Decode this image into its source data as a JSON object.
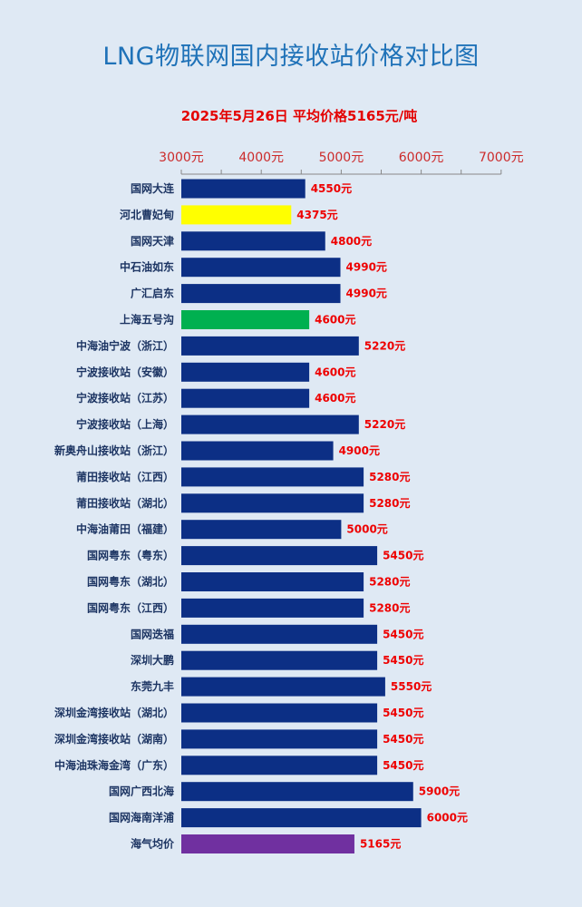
{
  "header": {
    "title": "LNG物联网国内接收站价格对比图",
    "subtitle": "2025年5月26日 平均价格5165元/吨"
  },
  "chart_data": {
    "type": "bar",
    "orientation": "horizontal",
    "title": "LNG物联网国内接收站价格对比图",
    "subtitle": "2025年5月26日 平均价格5165元/吨",
    "xlim": [
      3000,
      7000
    ],
    "ticks": [
      3000,
      4000,
      5000,
      6000,
      7000
    ],
    "tick_labels": [
      "3000元",
      "4000元",
      "5000元",
      "6000元",
      "7000元"
    ],
    "value_suffix": "元",
    "colors": {
      "default": "#0c2f85",
      "highlight_yellow": "#ffff00",
      "highlight_green": "#00b050",
      "average": "#7030a0",
      "value_label": "#ee0000",
      "axis": "#888888"
    },
    "categories": [
      "国网大连",
      "河北曹妃甸",
      "国网天津",
      "中石油如东",
      "广汇启东",
      "上海五号沟",
      "中海油宁波（浙江）",
      "宁波接收站（安徽）",
      "宁波接收站（江苏）",
      "宁波接收站（上海）",
      "新奥舟山接收站（浙江）",
      "莆田接收站（江西）",
      "莆田接收站（湖北）",
      "中海油莆田（福建）",
      "国网粤东（粤东）",
      "国网粤东（湖北）",
      "国网粤东（江西）",
      "国网迭福",
      "深圳大鹏",
      "东莞九丰",
      "深圳金湾接收站（湖北）",
      "深圳金湾接收站（湖南）",
      "中海油珠海金湾（广东）",
      "国网广西北海",
      "国网海南洋浦",
      "海气均价"
    ],
    "values": [
      4550,
      4375,
      4800,
      4990,
      4990,
      4600,
      5220,
      4600,
      4600,
      5220,
      4900,
      5280,
      5280,
      5000,
      5450,
      5280,
      5280,
      5450,
      5450,
      5550,
      5450,
      5450,
      5450,
      5900,
      6000,
      5165
    ],
    "bar_colors": [
      "#0c2f85",
      "#ffff00",
      "#0c2f85",
      "#0c2f85",
      "#0c2f85",
      "#00b050",
      "#0c2f85",
      "#0c2f85",
      "#0c2f85",
      "#0c2f85",
      "#0c2f85",
      "#0c2f85",
      "#0c2f85",
      "#0c2f85",
      "#0c2f85",
      "#0c2f85",
      "#0c2f85",
      "#0c2f85",
      "#0c2f85",
      "#0c2f85",
      "#0c2f85",
      "#0c2f85",
      "#0c2f85",
      "#0c2f85",
      "#0c2f85",
      "#7030a0"
    ],
    "grid": false,
    "legend": "none"
  }
}
